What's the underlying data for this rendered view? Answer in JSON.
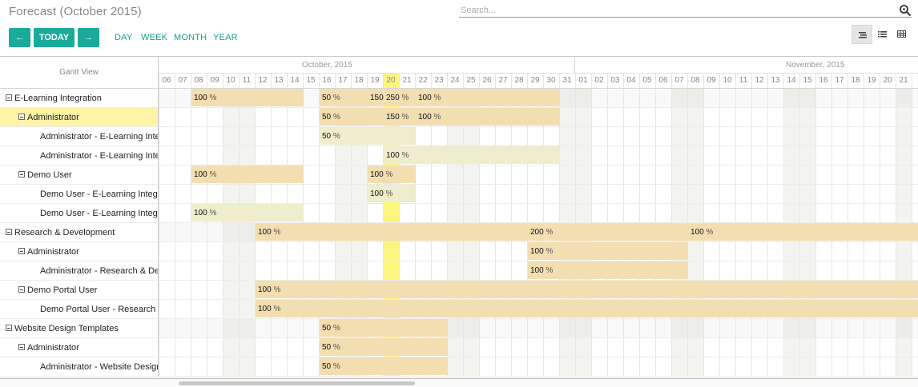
{
  "header": {
    "title": "Forecast (October 2015)",
    "search_placeholder": "Search...",
    "prev_label": "←",
    "today_label": "TODAY",
    "next_label": "→",
    "scales": [
      "DAY",
      "WEEK",
      "MONTH",
      "YEAR"
    ],
    "accent_color": "#1aaa9a"
  },
  "gantt": {
    "left_header": "Gantt View",
    "months": [
      "October, 2015",
      "November, 2015"
    ],
    "days": [
      "06",
      "07",
      "08",
      "09",
      "10",
      "11",
      "12",
      "13",
      "14",
      "15",
      "16",
      "17",
      "18",
      "19",
      "20",
      "21",
      "22",
      "23",
      "24",
      "25",
      "26",
      "27",
      "28",
      "29",
      "30",
      "31",
      "01",
      "02",
      "03",
      "04",
      "05",
      "06",
      "07",
      "08",
      "09",
      "10",
      "11",
      "12",
      "13",
      "14",
      "15",
      "16",
      "17",
      "18",
      "19",
      "20",
      "21"
    ],
    "today": "20",
    "rows": [
      {
        "label": "E-Learning Integration",
        "level": 0,
        "toggle": true,
        "bars": [
          {
            "start": 2,
            "end": 9,
            "text": "100"
          },
          {
            "start": 10,
            "end": 13,
            "text": "50"
          },
          {
            "start": 13,
            "end": 14,
            "text": "150",
            "nopct": true
          },
          {
            "start": 14,
            "end": 16,
            "text": "250"
          },
          {
            "start": 16,
            "end": 25,
            "text": "100"
          }
        ]
      },
      {
        "label": "Administrator",
        "level": 1,
        "toggle": true,
        "highlight": true,
        "bars": [
          {
            "start": 10,
            "end": 14,
            "text": "50"
          },
          {
            "start": 14,
            "end": 16,
            "text": "150"
          },
          {
            "start": 16,
            "end": 25,
            "text": "100"
          }
        ]
      },
      {
        "label": "Administrator - E-Learning Integration",
        "level": 2,
        "bars": [
          {
            "start": 10,
            "end": 16,
            "text": "50",
            "light": true
          }
        ]
      },
      {
        "label": "Administrator - E-Learning Integration",
        "level": 2,
        "bars": [
          {
            "start": 14,
            "end": 25,
            "text": "100",
            "light": true
          }
        ]
      },
      {
        "label": "Demo User",
        "level": 1,
        "toggle": true,
        "bars": [
          {
            "start": 2,
            "end": 9,
            "text": "100"
          },
          {
            "start": 13,
            "end": 16,
            "text": "100"
          }
        ]
      },
      {
        "label": "Demo User - E-Learning Integration",
        "level": 2,
        "bars": [
          {
            "start": 13,
            "end": 16,
            "text": "100",
            "light": true
          }
        ]
      },
      {
        "label": "Demo User - E-Learning Integration",
        "level": 2,
        "bars": [
          {
            "start": 2,
            "end": 9,
            "text": "100",
            "light": true
          }
        ]
      },
      {
        "label": "Research & Development",
        "level": 0,
        "toggle": true,
        "bars": [
          {
            "start": 6,
            "end": 23,
            "text": "100"
          },
          {
            "start": 23,
            "end": 33,
            "text": "200"
          },
          {
            "start": 33,
            "end": 48,
            "text": "100"
          }
        ]
      },
      {
        "label": "Administrator",
        "level": 1,
        "toggle": true,
        "bars": [
          {
            "start": 23,
            "end": 33,
            "text": "100"
          }
        ]
      },
      {
        "label": "Administrator - Research & Development",
        "level": 2,
        "bars": [
          {
            "start": 23,
            "end": 33,
            "text": "100"
          }
        ]
      },
      {
        "label": "Demo Portal User",
        "level": 1,
        "toggle": true,
        "bars": [
          {
            "start": 6,
            "end": 48,
            "text": "100"
          }
        ]
      },
      {
        "label": "Demo Portal User - Research & Development",
        "level": 2,
        "bars": [
          {
            "start": 6,
            "end": 48,
            "text": "100"
          }
        ]
      },
      {
        "label": "Website Design Templates",
        "level": 0,
        "toggle": true,
        "bars": [
          {
            "start": 10,
            "end": 18,
            "text": "50"
          }
        ]
      },
      {
        "label": "Administrator",
        "level": 1,
        "toggle": true,
        "bars": [
          {
            "start": 10,
            "end": 18,
            "text": "50"
          }
        ]
      },
      {
        "label": "Administrator - Website Design Templates",
        "level": 2,
        "bars": [
          {
            "start": 10,
            "end": 18,
            "text": "50"
          }
        ]
      }
    ]
  }
}
